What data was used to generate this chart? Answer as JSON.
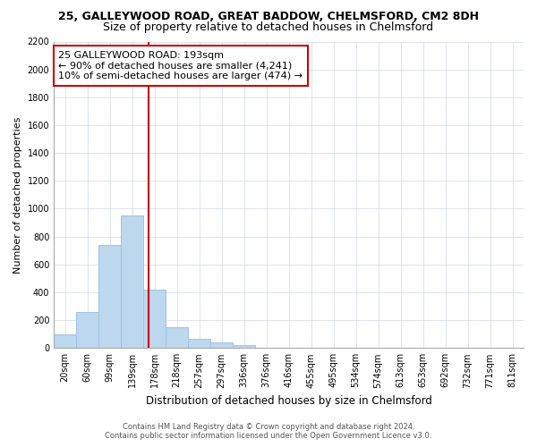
{
  "title1": "25, GALLEYWOOD ROAD, GREAT BADDOW, CHELMSFORD, CM2 8DH",
  "title2": "Size of property relative to detached houses in Chelmsford",
  "xlabel": "Distribution of detached houses by size in Chelmsford",
  "ylabel": "Number of detached properties",
  "categories": [
    "20sqm",
    "60sqm",
    "99sqm",
    "139sqm",
    "178sqm",
    "218sqm",
    "257sqm",
    "297sqm",
    "336sqm",
    "376sqm",
    "416sqm",
    "455sqm",
    "495sqm",
    "534sqm",
    "574sqm",
    "613sqm",
    "653sqm",
    "692sqm",
    "732sqm",
    "771sqm",
    "811sqm"
  ],
  "values": [
    100,
    260,
    740,
    950,
    420,
    150,
    65,
    40,
    20,
    0,
    0,
    0,
    0,
    0,
    0,
    0,
    0,
    0,
    0,
    0,
    0
  ],
  "bar_color": "#bdd7ee",
  "bar_edge_color": "#9dc3e6",
  "vline_pos": 3.72,
  "vline_color": "#cc0000",
  "annotation_text": "25 GALLEYWOOD ROAD: 193sqm\n← 90% of detached houses are smaller (4,241)\n10% of semi-detached houses are larger (474) →",
  "annotation_box_color": "#ffffff",
  "annotation_box_edge": "#cc0000",
  "ylim": [
    0,
    2200
  ],
  "yticks": [
    0,
    200,
    400,
    600,
    800,
    1000,
    1200,
    1400,
    1600,
    1800,
    2000,
    2200
  ],
  "footer1": "Contains HM Land Registry data © Crown copyright and database right 2024.",
  "footer2": "Contains public sector information licensed under the Open Government Licence v3.0.",
  "background_color": "#ffffff",
  "grid_color": "#d0d8e8",
  "title1_fontsize": 9,
  "title2_fontsize": 9,
  "tick_fontsize": 7,
  "ylabel_fontsize": 8,
  "xlabel_fontsize": 8.5,
  "annotation_fontsize": 8
}
